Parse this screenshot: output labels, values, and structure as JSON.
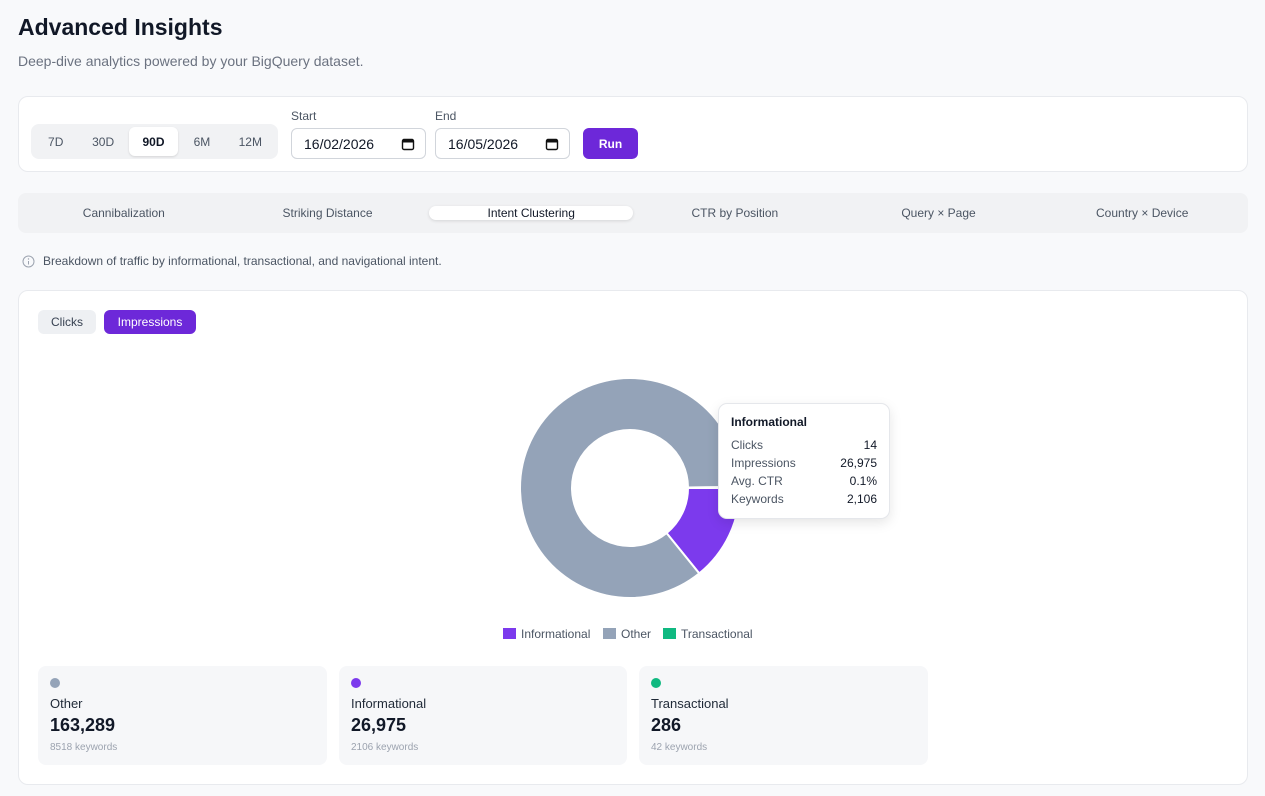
{
  "header": {
    "title": "Advanced Insights",
    "subtitle": "Deep-dive analytics powered by your BigQuery dataset."
  },
  "range_buttons": [
    {
      "label": "7D"
    },
    {
      "label": "30D"
    },
    {
      "label": "90D",
      "selected": true
    },
    {
      "label": "6M"
    },
    {
      "label": "12M"
    }
  ],
  "dates": {
    "start_label": "Start",
    "start_value": "16/02/2026",
    "end_label": "End",
    "end_value": "16/05/2026",
    "run": "Run"
  },
  "tabs": [
    {
      "label": "Cannibalization"
    },
    {
      "label": "Striking Distance"
    },
    {
      "label": "Intent Clustering",
      "selected": true
    },
    {
      "label": "CTR by Position"
    },
    {
      "label": "Query × Page"
    },
    {
      "label": "Country × Device"
    }
  ],
  "info": "Breakdown of traffic by informational, transactional, and navigational intent.",
  "metric_toggle": [
    {
      "label": "Clicks"
    },
    {
      "label": "Impressions",
      "selected": true
    }
  ],
  "chart_data": {
    "type": "pie",
    "donut": true,
    "categories": [
      "Informational",
      "Other",
      "Transactional"
    ],
    "values": [
      26975,
      163289,
      286
    ],
    "colors": [
      "#7c3aed",
      "#94a3b8",
      "#10b981"
    ]
  },
  "tooltip": {
    "title": "Informational",
    "rows": [
      [
        "Clicks",
        "14"
      ],
      [
        "Impressions",
        "26,975"
      ],
      [
        "Avg. CTR",
        "0.1%"
      ],
      [
        "Keywords",
        "2,106"
      ]
    ]
  },
  "cards": [
    {
      "name": "Other",
      "value": "163,289",
      "keywords": "8518 keywords",
      "color": "#94a3b8"
    },
    {
      "name": "Informational",
      "value": "26,975",
      "keywords": "2106 keywords",
      "color": "#7c3aed"
    },
    {
      "name": "Transactional",
      "value": "286",
      "keywords": "42 keywords",
      "color": "#10b981"
    }
  ]
}
